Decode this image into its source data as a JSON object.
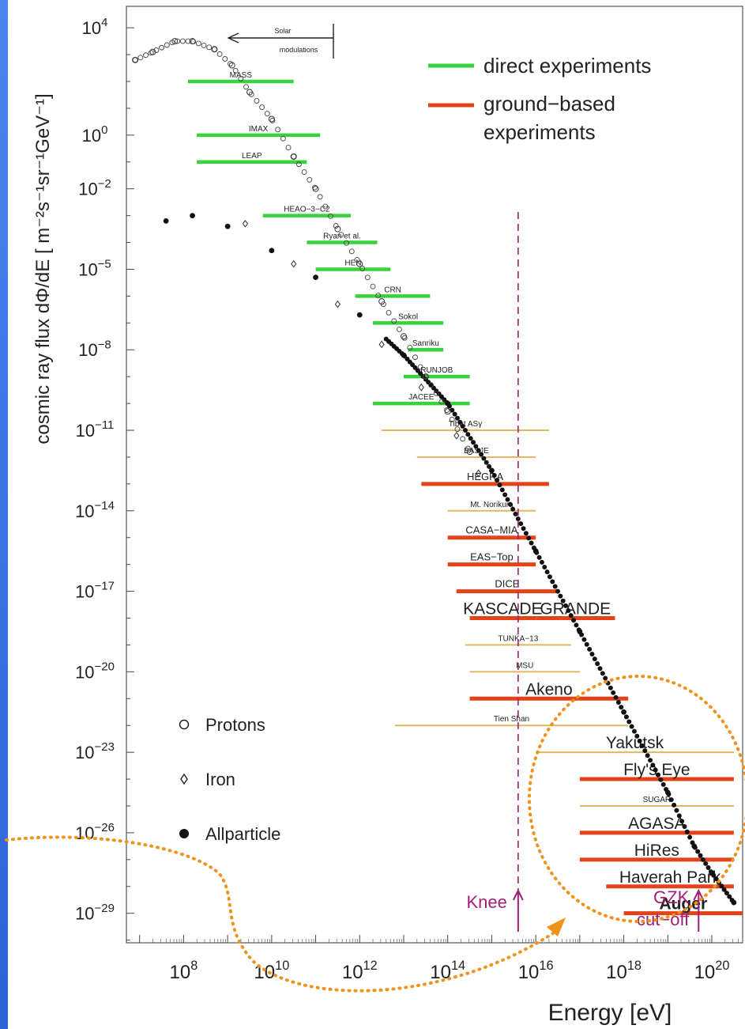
{
  "chart_data": {
    "type": "scatter",
    "title": "",
    "xlabel": "Energy [eV]",
    "ylabel": "cosmic ray flux dΦ/dE  [ m⁻²s⁻¹sr⁻¹GeV⁻¹]",
    "x_log10_range": [
      6.7,
      20.7
    ],
    "y_log10_range": [
      -30.1,
      4.8
    ],
    "x_tick_exponents": [
      8,
      10,
      12,
      14,
      16,
      18,
      20
    ],
    "y_tick_exponents": [
      4,
      0,
      -2,
      -5,
      -8,
      -11,
      -14,
      -17,
      -20,
      -23,
      -26,
      -29
    ],
    "legend": {
      "placement": "top-right",
      "entries": [
        {
          "label": "direct experiments",
          "color": "#36d33c"
        },
        {
          "label": "ground−based experiments",
          "color": "#e4431a"
        }
      ]
    },
    "marker_legend": {
      "placement": "bottom-left",
      "entries": [
        {
          "label": "Protons",
          "marker": "open-circle"
        },
        {
          "label": "Iron",
          "marker": "open-diamond"
        },
        {
          "label": "Allparticle",
          "marker": "filled-circle"
        }
      ]
    },
    "experiments": [
      {
        "name": "MASS",
        "kind": "direct",
        "xmin": 8.1,
        "xmax": 10.5,
        "y": 2.0
      },
      {
        "name": "IMAX",
        "kind": "direct",
        "xmin": 8.3,
        "xmax": 11.1,
        "y": 0.0
      },
      {
        "name": "LEAP",
        "kind": "direct",
        "xmin": 8.3,
        "xmax": 10.8,
        "y": -1.0
      },
      {
        "name": "HEAO−3−C2",
        "kind": "direct",
        "xmin": 9.8,
        "xmax": 11.8,
        "y": -3.0
      },
      {
        "name": "Ryan et al.",
        "kind": "direct",
        "xmin": 10.8,
        "xmax": 12.4,
        "y": -4.0
      },
      {
        "name": "HEN",
        "kind": "direct",
        "xmin": 11.0,
        "xmax": 12.7,
        "y": -5.0
      },
      {
        "name": "CRN",
        "kind": "direct",
        "xmin": 11.9,
        "xmax": 13.6,
        "y": -6.0
      },
      {
        "name": "Sokol",
        "kind": "direct",
        "xmin": 12.3,
        "xmax": 13.9,
        "y": -7.0
      },
      {
        "name": "Sanriku",
        "kind": "direct",
        "xmin": 13.1,
        "xmax": 13.9,
        "y": -8.0
      },
      {
        "name": "RUNJOB",
        "kind": "direct",
        "xmin": 13.0,
        "xmax": 14.5,
        "y": -9.0
      },
      {
        "name": "JACEE",
        "kind": "direct",
        "xmin": 12.3,
        "xmax": 14.5,
        "y": -10.0
      },
      {
        "name": "Tibet ASγ",
        "kind": "ground-minor",
        "xmin": 12.5,
        "xmax": 16.3,
        "y": -11.0
      },
      {
        "name": "BASJE",
        "kind": "ground-minor",
        "xmin": 13.3,
        "xmax": 16.0,
        "y": -12.0
      },
      {
        "name": "HEGRA",
        "kind": "ground",
        "xmin": 13.4,
        "xmax": 16.3,
        "y": -13.0
      },
      {
        "name": "Mt. Norikura",
        "kind": "ground-minor",
        "xmin": 14.0,
        "xmax": 16.0,
        "y": -14.0
      },
      {
        "name": "CASA−MIA",
        "kind": "ground",
        "xmin": 14.0,
        "xmax": 16.0,
        "y": -15.0
      },
      {
        "name": "EAS−Top",
        "kind": "ground",
        "xmin": 14.0,
        "xmax": 16.0,
        "y": -16.0
      },
      {
        "name": "DICE",
        "kind": "ground",
        "xmin": 14.2,
        "xmax": 16.5,
        "y": -17.0
      },
      {
        "name": "KASCADE",
        "kind": "ground",
        "xmin": 14.5,
        "xmax": 16.0,
        "y": -18.0
      },
      {
        "name": "GRANDE",
        "kind": "ground",
        "xmin": 16.0,
        "xmax": 17.8,
        "y": -18.0
      },
      {
        "name": "TUNKA−13",
        "kind": "ground-minor",
        "xmin": 14.4,
        "xmax": 16.8,
        "y": -19.0
      },
      {
        "name": "MSU",
        "kind": "ground-minor",
        "xmin": 14.5,
        "xmax": 17.0,
        "y": -20.0
      },
      {
        "name": "Akeno",
        "kind": "ground",
        "xmin": 14.5,
        "xmax": 18.1,
        "y": -21.0
      },
      {
        "name": "Tien Shan",
        "kind": "ground-minor",
        "xmin": 12.8,
        "xmax": 18.1,
        "y": -22.0
      },
      {
        "name": "Yakutsk",
        "kind": "ground-minor",
        "xmin": 16.0,
        "xmax": 20.5,
        "y": -23.0
      },
      {
        "name": "Fly's Eye",
        "kind": "ground",
        "xmin": 17.0,
        "xmax": 20.5,
        "y": -24.0
      },
      {
        "name": "SUGAR",
        "kind": "ground-minor",
        "xmin": 17.0,
        "xmax": 20.5,
        "y": -25.0
      },
      {
        "name": "AGASA",
        "kind": "ground",
        "xmin": 17.0,
        "xmax": 20.5,
        "y": -26.0
      },
      {
        "name": "HiRes",
        "kind": "ground",
        "xmin": 17.0,
        "xmax": 20.5,
        "y": -27.0
      },
      {
        "name": "Haverah Park",
        "kind": "ground",
        "xmin": 17.6,
        "xmax": 20.5,
        "y": -28.0
      },
      {
        "name": "Auger",
        "kind": "ground",
        "xmin": 18.0,
        "xmax": 20.7,
        "y": -29.0
      }
    ],
    "allparticle": [
      [
        7.6,
        -3.2
      ],
      [
        8.2,
        -3.0
      ],
      [
        9.0,
        -3.4
      ],
      [
        10.0,
        -4.3
      ],
      [
        11.0,
        -5.3
      ],
      [
        12.0,
        -6.7
      ],
      [
        13.0,
        -8.2
      ],
      [
        14.0,
        -10.0
      ],
      [
        15.0,
        -12.5
      ],
      [
        16.0,
        -15.5
      ],
      [
        17.0,
        -18.5
      ],
      [
        18.0,
        -21.5
      ],
      [
        19.0,
        -24.5
      ],
      [
        19.6,
        -26.5
      ],
      [
        20.0,
        -27.5
      ],
      [
        20.5,
        -28.6
      ]
    ],
    "protons": [
      [
        6.9,
        2.8
      ],
      [
        7.3,
        3.1
      ],
      [
        7.8,
        3.5
      ],
      [
        8.2,
        3.5
      ],
      [
        8.7,
        3.2
      ],
      [
        9.1,
        2.6
      ],
      [
        9.5,
        1.6
      ],
      [
        10.0,
        0.6
      ],
      [
        10.5,
        -0.8
      ],
      [
        11.0,
        -2.0
      ],
      [
        11.5,
        -3.5
      ],
      [
        12.0,
        -4.8
      ],
      [
        12.5,
        -6.2
      ],
      [
        13.0,
        -7.5
      ],
      [
        13.5,
        -9.0
      ],
      [
        14.0,
        -10.3
      ],
      [
        14.5,
        -11.8
      ]
    ],
    "iron": [
      [
        9.4,
        -3.3
      ],
      [
        10.5,
        -4.8
      ],
      [
        11.5,
        -6.3
      ],
      [
        12.5,
        -7.8
      ],
      [
        13.4,
        -9.4
      ],
      [
        14.2,
        -11.2
      ],
      [
        14.7,
        -12.6
      ]
    ],
    "annotations": {
      "solar": "Solar modulations",
      "knee": "Knee",
      "gzk": "GZK cut−off",
      "knee_x": 15.6,
      "gzk_x": 19.7
    }
  },
  "colors": {
    "direct": "#36d33c",
    "ground": "#e4431a",
    "ground_minor": "#e2b763",
    "knee": "#a11e78",
    "gzk": "#a11e78",
    "highlight": "#f0921a",
    "slide_edge": "#3d74e6"
  }
}
